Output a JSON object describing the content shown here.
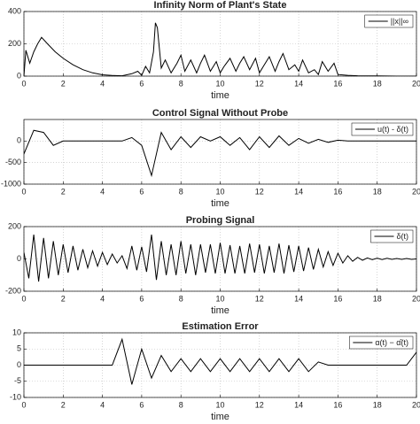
{
  "chart_data": [
    {
      "type": "line",
      "title": "Infinity Norm of Plant's State",
      "xlabel": "time",
      "xlim": [
        0,
        20
      ],
      "xticks": [
        0,
        2,
        4,
        6,
        8,
        10,
        12,
        14,
        16,
        18,
        20
      ],
      "ylim": [
        0,
        400
      ],
      "yticks": [
        0,
        200,
        400
      ],
      "grid": true,
      "legend": "upper right",
      "x": [
        0,
        0.1,
        0.3,
        0.5,
        0.7,
        0.9,
        1.2,
        1.6,
        2,
        2.5,
        3,
        3.5,
        4,
        4.5,
        5,
        5.5,
        5.8,
        6,
        6.2,
        6.4,
        6.6,
        6.7,
        6.8,
        7,
        7.2,
        7.5,
        7.8,
        8,
        8.2,
        8.5,
        8.8,
        9,
        9.2,
        9.5,
        9.8,
        10,
        10.2,
        10.5,
        10.8,
        11,
        11.2,
        11.5,
        11.8,
        12,
        12.2,
        12.5,
        12.8,
        13,
        13.2,
        13.5,
        13.8,
        14,
        14.2,
        14.5,
        14.8,
        15,
        15.2,
        15.5,
        15.8,
        16,
        16.5,
        17,
        18,
        19,
        20
      ],
      "series": [
        {
          "name": "||x||∞",
          "color": "#000000",
          "values": [
            0,
            160,
            80,
            150,
            200,
            240,
            200,
            150,
            110,
            70,
            40,
            20,
            8,
            4,
            2,
            15,
            30,
            5,
            60,
            20,
            150,
            330,
            300,
            50,
            100,
            20,
            80,
            130,
            30,
            100,
            20,
            80,
            130,
            30,
            90,
            20,
            60,
            110,
            30,
            80,
            120,
            40,
            110,
            20,
            60,
            120,
            30,
            90,
            140,
            40,
            70,
            30,
            100,
            20,
            40,
            10,
            90,
            30,
            80,
            10,
            5,
            2,
            1,
            0,
            0
          ]
        }
      ]
    },
    {
      "type": "line",
      "title": "Control Signal Without Probe",
      "xlabel": "time",
      "xlim": [
        0,
        20
      ],
      "xticks": [
        0,
        2,
        4,
        6,
        8,
        10,
        12,
        14,
        16,
        18,
        20
      ],
      "ylim": [
        -1000,
        500
      ],
      "yticks": [
        -1000,
        -500,
        0
      ],
      "grid": true,
      "legend": "upper right",
      "x": [
        0,
        0.5,
        1,
        1.5,
        2,
        2.5,
        3,
        3.5,
        4,
        4.5,
        5,
        5.5,
        6,
        6.5,
        7,
        7.5,
        8,
        8.5,
        9,
        9.5,
        10,
        10.5,
        11,
        11.5,
        12,
        12.5,
        13,
        13.5,
        14,
        14.5,
        15,
        15.5,
        16,
        16.5,
        17,
        17.5,
        18,
        18.5,
        19,
        19.5,
        20
      ],
      "series": [
        {
          "name": "u(t) - δ(t)",
          "color": "#000000",
          "values": [
            -300,
            250,
            200,
            -100,
            0,
            0,
            0,
            0,
            0,
            0,
            0,
            80,
            -100,
            -800,
            200,
            -200,
            100,
            -150,
            100,
            0,
            100,
            -100,
            80,
            -200,
            100,
            -150,
            120,
            -100,
            60,
            -50,
            40,
            -30,
            20,
            0,
            0,
            0,
            0,
            0,
            0,
            0,
            0
          ]
        }
      ]
    },
    {
      "type": "line",
      "title": "Probing Signal",
      "xlabel": "time",
      "xlim": [
        0,
        20
      ],
      "xticks": [
        0,
        2,
        4,
        6,
        8,
        10,
        12,
        14,
        16,
        18,
        20
      ],
      "ylim": [
        -200,
        200
      ],
      "yticks": [
        -200,
        0,
        200
      ],
      "grid": true,
      "legend": "upper right",
      "x": [
        0,
        0.25,
        0.5,
        0.75,
        1,
        1.25,
        1.5,
        1.75,
        2,
        2.25,
        2.5,
        2.75,
        3,
        3.25,
        3.5,
        3.75,
        4,
        4.25,
        4.5,
        4.75,
        5,
        5.25,
        5.5,
        5.75,
        6,
        6.25,
        6.5,
        6.75,
        7,
        7.25,
        7.5,
        7.75,
        8,
        8.25,
        8.5,
        8.75,
        9,
        9.25,
        9.5,
        9.75,
        10,
        10.25,
        10.5,
        10.75,
        11,
        11.25,
        11.5,
        11.75,
        12,
        12.25,
        12.5,
        12.75,
        13,
        13.25,
        13.5,
        13.75,
        14,
        14.25,
        14.5,
        14.75,
        15,
        15.25,
        15.5,
        15.75,
        16,
        16.25,
        16.5,
        16.75,
        17,
        17.25,
        17.5,
        17.75,
        18,
        18.25,
        18.5,
        18.75,
        19,
        19.25,
        19.5,
        19.75,
        20
      ],
      "series": [
        {
          "name": "δ(t)",
          "color": "#000000",
          "values": [
            40,
            -120,
            150,
            -140,
            130,
            -120,
            110,
            -100,
            90,
            -85,
            80,
            -70,
            60,
            -55,
            50,
            -45,
            40,
            -35,
            30,
            -25,
            20,
            -60,
            80,
            -70,
            75,
            -80,
            150,
            -130,
            110,
            -100,
            90,
            -100,
            110,
            -90,
            90,
            -100,
            90,
            -85,
            90,
            -90,
            100,
            -90,
            85,
            -90,
            80,
            -90,
            95,
            -85,
            90,
            -90,
            80,
            -85,
            95,
            -90,
            85,
            -80,
            80,
            -75,
            70,
            -65,
            60,
            -50,
            45,
            -40,
            35,
            -25,
            20,
            -15,
            10,
            -8,
            6,
            -5,
            5,
            -4,
            4,
            -3,
            3,
            -3,
            3,
            -3,
            0
          ]
        }
      ]
    },
    {
      "type": "line",
      "title": "Estimation Error",
      "xlabel": "time",
      "xlim": [
        0,
        20
      ],
      "xticks": [
        0,
        2,
        4,
        6,
        8,
        10,
        12,
        14,
        16,
        18,
        20
      ],
      "ylim": [
        -10,
        10
      ],
      "yticks": [
        -10,
        -5,
        0,
        5,
        10
      ],
      "grid": true,
      "legend": "upper right",
      "x": [
        0,
        0.5,
        1,
        1.5,
        2,
        2.5,
        3,
        3.5,
        4,
        4.5,
        5,
        5.5,
        6,
        6.5,
        7,
        7.5,
        8,
        8.5,
        9,
        9.5,
        10,
        10.5,
        11,
        11.5,
        12,
        12.5,
        13,
        13.5,
        14,
        14.5,
        15,
        15.5,
        16,
        16.5,
        17,
        17.5,
        18,
        18.5,
        19,
        19.5,
        20
      ],
      "series": [
        {
          "name": "α(t) − α̂(t)",
          "color": "#000000",
          "values": [
            0,
            0,
            0,
            0,
            0,
            0,
            0,
            0,
            0,
            0,
            8,
            -6,
            5,
            -4,
            3,
            -2,
            2,
            -2,
            2,
            -2,
            2,
            -2,
            2,
            -2,
            2,
            -2,
            2,
            -2,
            2,
            -2,
            1,
            0,
            0,
            0,
            0,
            0,
            0,
            0,
            0,
            0,
            4
          ]
        }
      ]
    }
  ]
}
